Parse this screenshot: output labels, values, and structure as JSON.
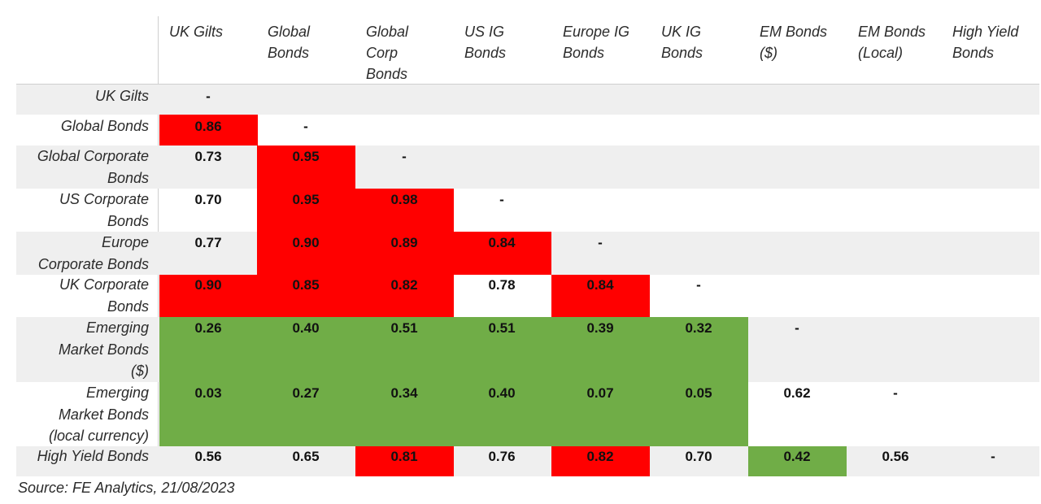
{
  "chart_data": {
    "type": "table",
    "columns": [
      "UK Gilts",
      "Global\nBonds",
      "Global\nCorp\nBonds",
      "US IG\nBonds",
      "Europe IG\nBonds",
      "UK IG\nBonds",
      "EM Bonds\n($)",
      "EM Bonds\n(Local)",
      "High Yield\nBonds"
    ],
    "rows": [
      {
        "label": "UK Gilts",
        "values": [
          "-"
        ]
      },
      {
        "label": "Global Bonds",
        "values": [
          "0.86",
          "-"
        ]
      },
      {
        "label": "Global Corporate\nBonds",
        "values": [
          "0.73",
          "0.95",
          "-"
        ]
      },
      {
        "label": "US Corporate\nBonds",
        "values": [
          "0.70",
          "0.95",
          "0.98",
          "-"
        ]
      },
      {
        "label": "Europe\nCorporate Bonds",
        "values": [
          "0.77",
          "0.90",
          "0.89",
          "0.84",
          "-"
        ]
      },
      {
        "label": "UK Corporate\nBonds",
        "values": [
          "0.90",
          "0.85",
          "0.82",
          "0.78",
          "0.84",
          "-"
        ]
      },
      {
        "label": "Emerging\nMarket Bonds\n($)",
        "values": [
          "0.26",
          "0.40",
          "0.51",
          "0.51",
          "0.39",
          "0.32",
          "-"
        ]
      },
      {
        "label": "Emerging\nMarket Bonds\n(local currency)",
        "values": [
          "0.03",
          "0.27",
          "0.34",
          "0.40",
          "0.07",
          "0.05",
          "0.62",
          "-"
        ]
      },
      {
        "label": "High Yield Bonds",
        "values": [
          "0.56",
          "0.65",
          "0.81",
          "0.76",
          "0.82",
          "0.70",
          "0.42",
          "0.56",
          "-"
        ]
      }
    ],
    "highlight": [
      [
        null
      ],
      [
        "red",
        null
      ],
      [
        null,
        "red",
        null
      ],
      [
        null,
        "red",
        "red",
        null
      ],
      [
        null,
        "red",
        "red",
        "red",
        null
      ],
      [
        "red",
        "red",
        "red",
        null,
        "red",
        null
      ],
      [
        "green",
        "green",
        "green",
        "green",
        "green",
        "green",
        null
      ],
      [
        "green",
        "green",
        "green",
        "green",
        "green",
        "green",
        null,
        null
      ],
      [
        null,
        null,
        "red",
        null,
        "red",
        null,
        "green",
        null,
        null
      ]
    ],
    "colors": {
      "red": "#ff0000",
      "green": "#70ad47",
      "band": "#efefef"
    }
  },
  "source": "Source: FE Analytics, 21/08/2023"
}
